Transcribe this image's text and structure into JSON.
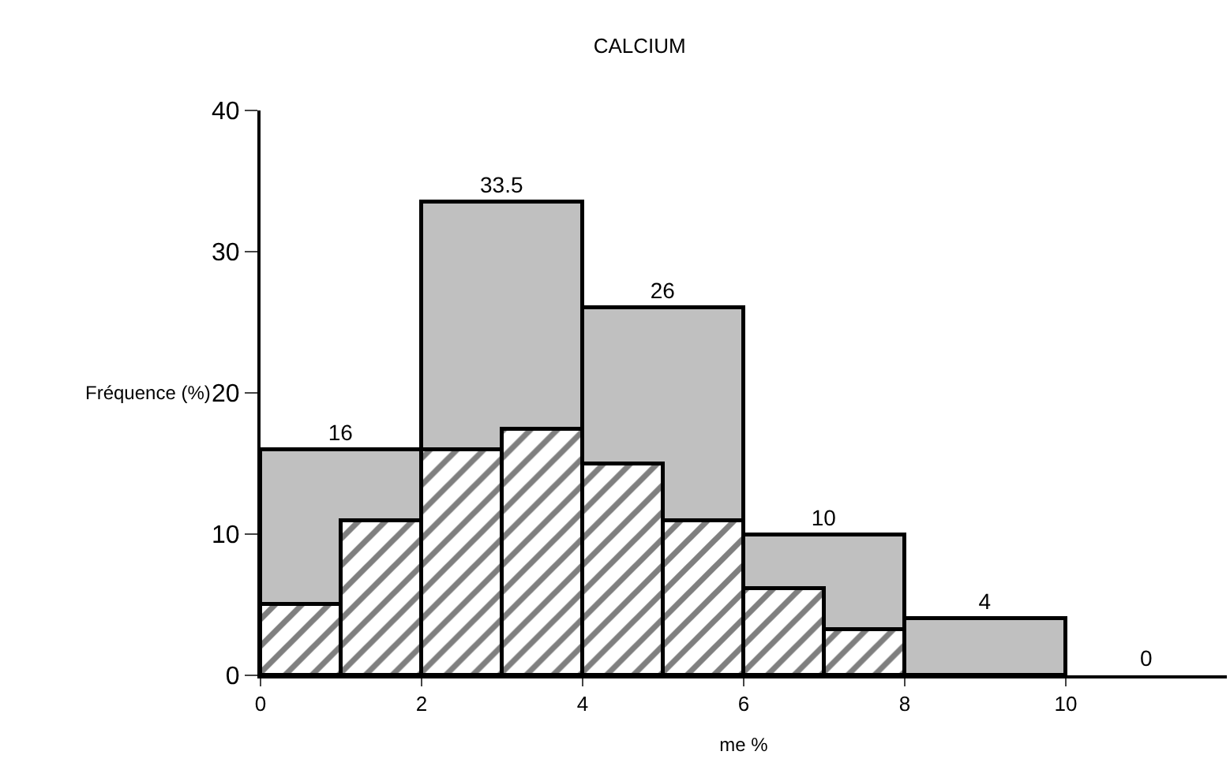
{
  "chart_data": {
    "type": "bar",
    "title": "CALCIUM",
    "xlabel": "me %",
    "ylabel": "Fréquence (%)",
    "series": [
      {
        "color": "#c0c0c0",
        "x": [
          1,
          3,
          5,
          7,
          9,
          11
        ],
        "values": [
          16,
          33.5,
          26,
          10,
          4,
          0
        ],
        "value_labels": [
          "16",
          "33.5",
          "26",
          "10",
          "4",
          "0"
        ]
      },
      {
        "color": "#000000",
        "x": [
          0.5,
          1.5,
          2.5,
          3.5,
          4.5,
          5.5,
          6.5,
          7.5
        ],
        "values": [
          5,
          11,
          16,
          17.4,
          15,
          11,
          6.2,
          3.2
        ]
      }
    ],
    "xlim": [
      0,
      12
    ],
    "xticks": [
      0,
      2,
      4,
      6,
      8,
      10
    ],
    "ylim": [
      0,
      40
    ],
    "yticks": [
      0,
      10,
      20,
      30,
      40
    ]
  }
}
